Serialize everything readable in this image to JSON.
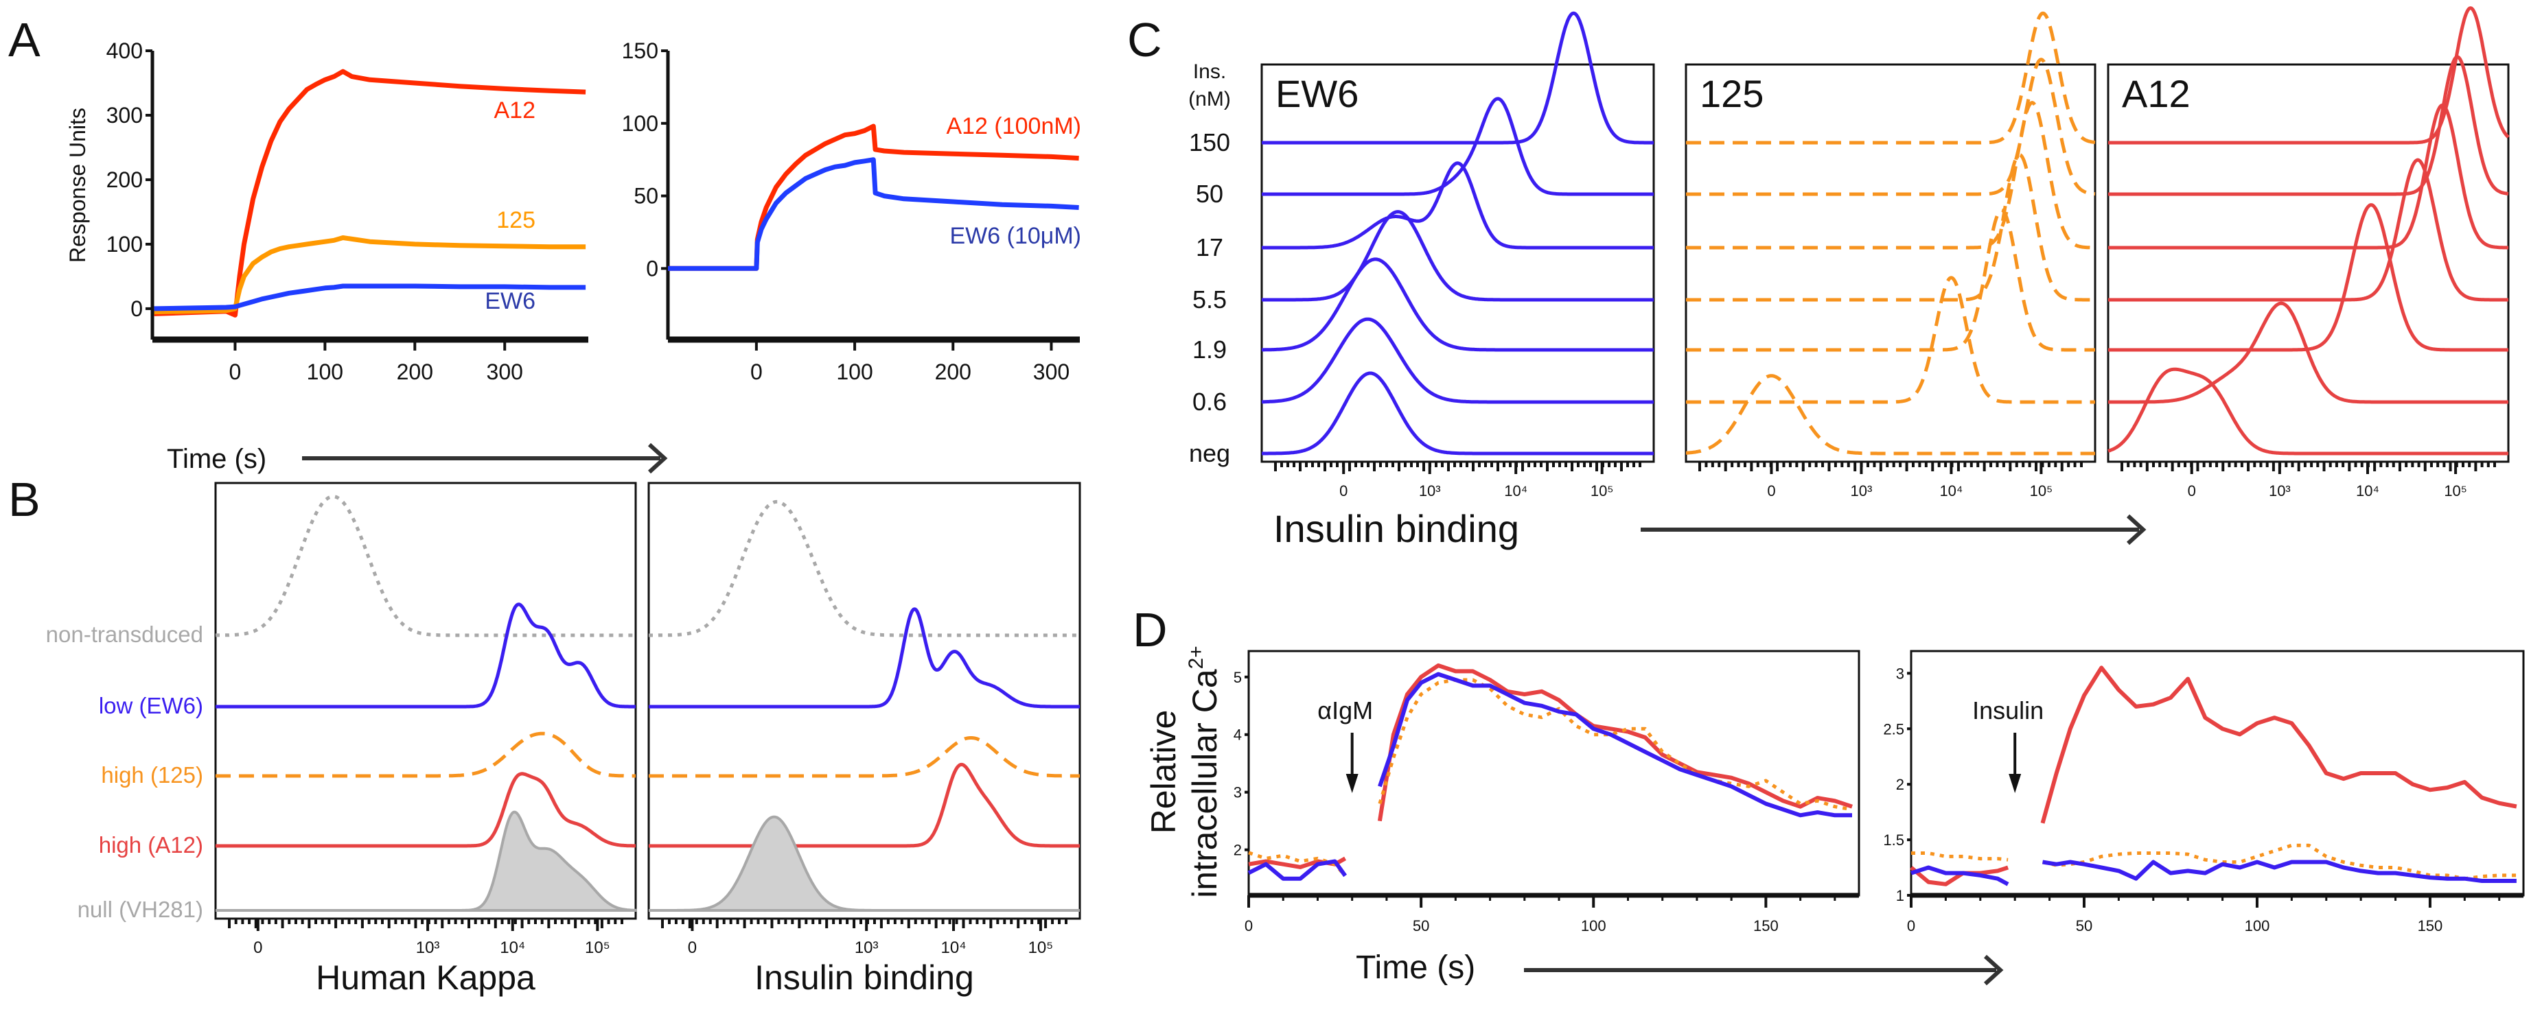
{
  "panel_letters": {
    "A": "A",
    "B": "B",
    "C": "C",
    "D": "D"
  },
  "panel_A": {
    "xlabel": "Time (s)",
    "ylabel": "Response Units"
  },
  "panel_B": {
    "xlabels": [
      "Human Kappa",
      "Insulin binding"
    ]
  },
  "panel_C": {
    "row_header": [
      "Ins.",
      "(nM)"
    ],
    "rows": [
      "150",
      "50",
      "17",
      "5.5",
      "1.9",
      "0.6",
      "neg"
    ],
    "xlabel": "Insulin binding"
  },
  "panel_D": {
    "ylabel": [
      "Relative",
      "intracellular Ca",
      "2+"
    ],
    "xlabel": "Time (s)"
  },
  "colors": {
    "red_spr": "#ff2a00",
    "orange": "#f7931e",
    "blue_spr": "#1f3dff",
    "red": "#e64242",
    "blue": "#3a1ef0",
    "grey": "#a8a8a8"
  },
  "chart_data": [
    {
      "type": "line",
      "panel": "A",
      "xlim": [
        -92,
        393
      ],
      "ylim": [
        -48,
        400
      ],
      "xticks": [
        0,
        100,
        200,
        300
      ],
      "xtick_labels": [
        "0",
        "100",
        "200",
        "300"
      ],
      "yticks": [
        0,
        100,
        200,
        300,
        400
      ],
      "ytick_labels": [
        "0",
        "100",
        "200",
        "300",
        "400"
      ],
      "t": [
        -90,
        -10,
        0,
        5,
        10,
        20,
        30,
        40,
        50,
        60,
        70,
        80,
        90,
        100,
        110,
        120,
        130,
        150,
        200,
        250,
        300,
        350,
        390
      ],
      "series": [
        {
          "name": "A12",
          "color": "#ff2a00",
          "values": [
            -8,
            -4,
            -10,
            50,
            100,
            170,
            220,
            260,
            290,
            310,
            325,
            340,
            348,
            355,
            360,
            368,
            360,
            355,
            350,
            345,
            341,
            338,
            336
          ]
        },
        {
          "name": "125",
          "color": "#ff9900",
          "values": [
            -5,
            -3,
            0,
            30,
            50,
            70,
            80,
            88,
            93,
            96,
            98,
            100,
            102,
            104,
            106,
            110,
            108,
            104,
            100,
            98,
            97,
            96,
            96
          ]
        },
        {
          "name": "EW6",
          "color": "#1f3dff",
          "label_color": "#2b3aa8",
          "values": [
            0,
            2,
            3,
            5,
            7,
            11,
            15,
            18,
            21,
            24,
            26,
            28,
            30,
            32,
            33,
            35,
            35,
            35,
            35,
            34,
            34,
            33,
            33
          ]
        }
      ]
    },
    {
      "type": "line",
      "panel": "A",
      "xlim": [
        -90,
        329
      ],
      "ylim": [
        -49,
        150
      ],
      "xticks": [
        0,
        100,
        200,
        300
      ],
      "xtick_labels": [
        "0",
        "100",
        "200",
        "300"
      ],
      "yticks": [
        0,
        50,
        100,
        150
      ],
      "ytick_labels": [
        "0",
        "50",
        "100",
        "150"
      ],
      "t": [
        -90,
        -10,
        0,
        1,
        5,
        10,
        20,
        30,
        40,
        50,
        60,
        70,
        80,
        90,
        100,
        110,
        119,
        121,
        130,
        150,
        200,
        250,
        300,
        328
      ],
      "series": [
        {
          "name": "A12 (100nM)",
          "color": "#ff2a00",
          "values": [
            0,
            0,
            0,
            20,
            32,
            42,
            56,
            65,
            72,
            78,
            82,
            86,
            89,
            92,
            93,
            95,
            98,
            82,
            81,
            80,
            79,
            78,
            77,
            76
          ]
        },
        {
          "name": "EW6 (10μM)",
          "color": "#1f3dff",
          "label_color": "#2b3aa8",
          "values": [
            0,
            0,
            0,
            18,
            27,
            34,
            45,
            52,
            57,
            62,
            65,
            68,
            70,
            71,
            73,
            74,
            75,
            52,
            50,
            48,
            46,
            44,
            43,
            42
          ]
        }
      ]
    },
    {
      "type": "area",
      "panel": "B",
      "subtitle": "Human Kappa",
      "xlim": [
        -0.5,
        4.45
      ],
      "xticks": [
        0,
        2,
        3,
        4
      ],
      "xtick_labels": [
        "0",
        "10³",
        "10⁴",
        "10⁵"
      ],
      "series": [
        {
          "name": "non-transduced",
          "color": "#a8a8a8",
          "style": "dotted",
          "components": [
            [
              0.7,
              0.3,
              1.3
            ],
            [
              1.1,
              0.3,
              1.2
            ]
          ]
        },
        {
          "name": "low (EW6)",
          "color": "#3a1ef0",
          "style": "solid",
          "components": [
            [
              3.05,
              0.15,
              1.4
            ],
            [
              3.4,
              0.15,
              1.0
            ],
            [
              3.8,
              0.15,
              0.6
            ]
          ]
        },
        {
          "name": "high (125)",
          "color": "#f7931e",
          "style": "dashed",
          "components": [
            [
              3.25,
              0.3,
              0.55
            ],
            [
              3.6,
              0.2,
              0.2
            ]
          ]
        },
        {
          "name": "high (A12)",
          "color": "#e64242",
          "style": "solid",
          "components": [
            [
              3.05,
              0.15,
              0.9
            ],
            [
              3.35,
              0.15,
              0.75
            ],
            [
              3.75,
              0.2,
              0.3
            ]
          ]
        },
        {
          "name": "null (VH281)",
          "color": "#a8a8a8",
          "style": "filled",
          "components": [
            [
              3.0,
              0.15,
              1.3
            ],
            [
              3.4,
              0.2,
              0.8
            ],
            [
              3.8,
              0.2,
              0.4
            ]
          ]
        }
      ]
    },
    {
      "type": "area",
      "panel": "B",
      "subtitle": "Insulin binding",
      "xlim": [
        -0.5,
        4.45
      ],
      "xticks": [
        0,
        2,
        3,
        4
      ],
      "xtick_labels": [
        "0",
        "10³",
        "10⁴",
        "10⁵"
      ],
      "series": [
        {
          "name": "non-transduced",
          "color": "#a8a8a8",
          "style": "dotted",
          "components": [
            [
              0.8,
              0.3,
              1.3
            ],
            [
              1.2,
              0.3,
              1.1
            ]
          ]
        },
        {
          "name": "low (EW6)",
          "color": "#3a1ef0",
          "style": "solid",
          "components": [
            [
              2.55,
              0.13,
              1.4
            ],
            [
              3.0,
              0.15,
              0.75
            ],
            [
              3.4,
              0.2,
              0.3
            ]
          ]
        },
        {
          "name": "high (125)",
          "color": "#f7931e",
          "style": "dashed",
          "components": [
            [
              3.2,
              0.3,
              0.55
            ]
          ]
        },
        {
          "name": "high (A12)",
          "color": "#e64242",
          "style": "solid",
          "components": [
            [
              3.05,
              0.15,
              0.95
            ],
            [
              3.35,
              0.2,
              0.6
            ]
          ]
        },
        {
          "name": "null (VH281)",
          "color": "#a8a8a8",
          "style": "filled",
          "components": [
            [
              0.94,
              0.28,
              1.35
            ]
          ]
        }
      ]
    },
    {
      "type": "area",
      "panel": "C",
      "title": "EW6",
      "color": "#3a1ef0",
      "style": "solid",
      "xlim": [
        -0.95,
        3.6
      ],
      "xticks": [
        0,
        1,
        2,
        3
      ],
      "xtick_labels": [
        "0",
        "10³",
        "10⁴",
        "10⁵"
      ],
      "rows": [
        [
          [
            2.67,
            0.2,
            2.5
          ]
        ],
        [
          [
            1.8,
            0.2,
            1.8
          ],
          [
            1.4,
            0.2,
            0.3
          ]
        ],
        [
          [
            1.33,
            0.2,
            1.6
          ],
          [
            0.6,
            0.3,
            0.6
          ]
        ],
        [
          [
            0.63,
            0.3,
            1.7
          ]
        ],
        [
          [
            0.37,
            0.35,
            1.75
          ]
        ],
        [
          [
            0.28,
            0.35,
            1.6
          ]
        ],
        [
          [
            0.31,
            0.3,
            1.55
          ]
        ]
      ]
    },
    {
      "type": "area",
      "panel": "C",
      "title": "125",
      "color": "#f7931e",
      "style": "dashed",
      "xlim": [
        -0.95,
        3.6
      ],
      "xticks": [
        0,
        1,
        2,
        3
      ],
      "xtick_labels": [
        "0",
        "10³",
        "10⁴",
        "10⁵"
      ],
      "rows": [
        [
          [
            3.02,
            0.17,
            2.5
          ]
        ],
        [
          [
            3.0,
            0.17,
            2.6
          ]
        ],
        [
          [
            2.9,
            0.17,
            2.8
          ]
        ],
        [
          [
            2.76,
            0.17,
            2.8
          ]
        ],
        [
          [
            2.56,
            0.17,
            2.7
          ]
        ],
        [
          [
            2.0,
            0.17,
            2.4
          ]
        ],
        [
          [
            0.0,
            0.3,
            1.5
          ]
        ]
      ]
    },
    {
      "type": "area",
      "panel": "C",
      "title": "A12",
      "color": "#e64242",
      "style": "solid",
      "xlim": [
        -0.95,
        3.6
      ],
      "xticks": [
        0,
        1,
        2,
        3
      ],
      "xtick_labels": [
        "0",
        "10³",
        "10⁴",
        "10⁵"
      ],
      "rows": [
        [
          [
            3.17,
            0.17,
            2.6
          ]
        ],
        [
          [
            3.02,
            0.17,
            2.65
          ]
        ],
        [
          [
            2.85,
            0.18,
            2.75
          ]
        ],
        [
          [
            2.57,
            0.2,
            2.7
          ]
        ],
        [
          [
            2.04,
            0.22,
            2.8
          ]
        ],
        [
          [
            1.04,
            0.25,
            1.8
          ],
          [
            0.5,
            0.3,
            0.5
          ]
        ],
        [
          [
            -0.3,
            0.25,
            1.4
          ],
          [
            0.2,
            0.25,
            1.2
          ]
        ]
      ]
    },
    {
      "type": "line",
      "panel": "D",
      "annotation": "αIgM",
      "annotation_t": 30,
      "xlim": [
        0,
        177
      ],
      "ylim": [
        1.21,
        5.45
      ],
      "xticks": [
        0,
        50,
        100,
        150
      ],
      "xtick_labels": [
        "0",
        "50",
        "100",
        "150"
      ],
      "yticks": [
        2,
        3,
        4,
        5
      ],
      "ytick_labels": [
        "2",
        "3",
        "4",
        "5"
      ],
      "t": [
        0,
        5,
        10,
        15,
        20,
        25,
        28,
        33,
        38,
        42,
        46,
        50,
        55,
        60,
        65,
        70,
        75,
        80,
        85,
        90,
        95,
        100,
        105,
        110,
        115,
        120,
        125,
        130,
        135,
        140,
        145,
        150,
        155,
        160,
        165,
        170,
        175
      ],
      "series": [
        {
          "name": "A12",
          "color": "#e64242",
          "style": "solid",
          "values": [
            1.75,
            1.8,
            1.75,
            1.7,
            1.8,
            1.75,
            1.85,
            null,
            2.5,
            4.0,
            4.7,
            5.0,
            5.2,
            5.1,
            5.1,
            4.95,
            4.75,
            4.7,
            4.75,
            4.6,
            4.35,
            4.15,
            4.1,
            4.05,
            3.95,
            3.65,
            3.5,
            3.35,
            3.3,
            3.25,
            3.15,
            3.0,
            2.85,
            2.75,
            2.9,
            2.85,
            2.75
          ]
        },
        {
          "name": "125",
          "color": "#f7931e",
          "style": "dotted",
          "values": [
            1.95,
            1.85,
            1.9,
            1.8,
            1.85,
            1.75,
            1.55,
            null,
            2.8,
            3.6,
            4.3,
            4.7,
            4.9,
            4.95,
            4.95,
            4.8,
            4.5,
            4.35,
            4.3,
            4.45,
            4.15,
            4.0,
            4.0,
            4.1,
            4.1,
            3.7,
            3.5,
            3.3,
            3.2,
            3.15,
            3.1,
            3.2,
            3.0,
            2.8,
            2.85,
            2.75,
            2.7
          ]
        },
        {
          "name": "EW6",
          "color": "#3a1ef0",
          "style": "solid",
          "values": [
            1.6,
            1.75,
            1.5,
            1.5,
            1.75,
            1.8,
            1.55,
            null,
            3.1,
            3.8,
            4.6,
            4.9,
            5.05,
            4.95,
            4.85,
            4.85,
            4.7,
            4.55,
            4.5,
            4.4,
            4.35,
            4.1,
            4.0,
            3.85,
            3.7,
            3.55,
            3.4,
            3.3,
            3.2,
            3.1,
            2.95,
            2.8,
            2.7,
            2.6,
            2.65,
            2.6,
            2.6
          ]
        }
      ]
    },
    {
      "type": "line",
      "panel": "D",
      "annotation": "Insulin",
      "annotation_t": 30,
      "xlim": [
        0,
        177
      ],
      "ylim": [
        1.0,
        3.2
      ],
      "xticks": [
        0,
        50,
        100,
        150
      ],
      "xtick_labels": [
        "0",
        "50",
        "100",
        "150"
      ],
      "yticks": [
        1,
        1.5,
        2,
        2.5,
        3
      ],
      "ytick_labels": [
        "1",
        "1.5",
        "2",
        "2.5",
        "3"
      ],
      "t": [
        0,
        5,
        10,
        15,
        20,
        25,
        28,
        33,
        38,
        42,
        46,
        50,
        55,
        60,
        65,
        70,
        75,
        80,
        85,
        90,
        95,
        100,
        105,
        110,
        115,
        120,
        125,
        130,
        135,
        140,
        145,
        150,
        155,
        160,
        165,
        170,
        175
      ],
      "series": [
        {
          "name": "A12",
          "color": "#e64242",
          "style": "solid",
          "values": [
            1.25,
            1.12,
            1.1,
            1.2,
            1.2,
            1.22,
            1.25,
            null,
            1.65,
            2.1,
            2.5,
            2.8,
            3.05,
            2.85,
            2.7,
            2.72,
            2.78,
            2.95,
            2.6,
            2.5,
            2.45,
            2.55,
            2.6,
            2.55,
            2.35,
            2.1,
            2.05,
            2.1,
            2.1,
            2.1,
            2.0,
            1.95,
            1.97,
            2.02,
            1.88,
            1.83,
            1.8
          ]
        },
        {
          "name": "125",
          "color": "#f7931e",
          "style": "dotted",
          "values": [
            1.38,
            1.38,
            1.35,
            1.35,
            1.33,
            1.33,
            1.32,
            null,
            1.3,
            1.27,
            1.28,
            1.3,
            1.35,
            1.37,
            1.38,
            1.38,
            1.38,
            1.37,
            1.32,
            1.3,
            1.3,
            1.35,
            1.4,
            1.45,
            1.45,
            1.35,
            1.3,
            1.27,
            1.25,
            1.25,
            1.22,
            1.18,
            1.18,
            1.15,
            1.17,
            1.18,
            1.18
          ]
        },
        {
          "name": "EW6",
          "color": "#3a1ef0",
          "style": "solid",
          "values": [
            1.2,
            1.25,
            1.2,
            1.2,
            1.18,
            1.15,
            1.1,
            null,
            1.3,
            1.28,
            1.3,
            1.28,
            1.25,
            1.22,
            1.15,
            1.3,
            1.2,
            1.22,
            1.2,
            1.28,
            1.25,
            1.3,
            1.25,
            1.3,
            1.3,
            1.3,
            1.25,
            1.22,
            1.2,
            1.2,
            1.18,
            1.16,
            1.15,
            1.15,
            1.13,
            1.13,
            1.13
          ]
        }
      ]
    }
  ]
}
